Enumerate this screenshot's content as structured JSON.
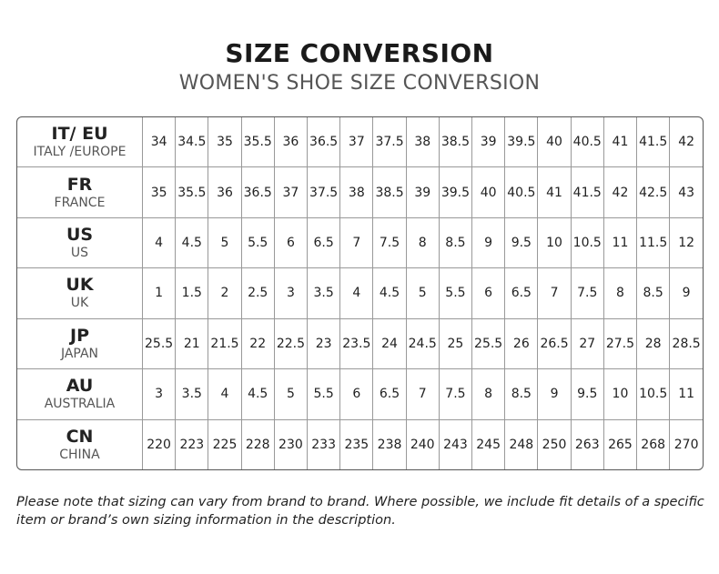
{
  "header": {
    "title": "SIZE CONVERSION",
    "subtitle": "WOMEN'S SHOE SIZE CONVERSION"
  },
  "table": {
    "rows": [
      {
        "code": "IT/ EU",
        "name": "ITALY /EUROPE",
        "values": [
          34,
          34.5,
          35,
          35.5,
          36,
          36.5,
          37,
          37.5,
          38,
          38.5,
          39,
          39.5,
          40,
          40.5,
          41,
          41.5,
          42
        ]
      },
      {
        "code": "FR",
        "name": "FRANCE",
        "values": [
          35,
          35.5,
          36,
          36.5,
          37,
          37.5,
          38,
          38.5,
          39,
          39.5,
          40,
          40.5,
          41,
          41.5,
          42,
          42.5,
          43
        ]
      },
      {
        "code": "US",
        "name": "US",
        "values": [
          4,
          4.5,
          5,
          5.5,
          6,
          6.5,
          7,
          7.5,
          8,
          8.5,
          9,
          9.5,
          10,
          10.5,
          11,
          11.5,
          12
        ]
      },
      {
        "code": "UK",
        "name": "UK",
        "values": [
          1,
          1.5,
          2,
          2.5,
          3,
          3.5,
          4,
          4.5,
          5,
          5.5,
          6,
          6.5,
          7,
          7.5,
          8,
          8.5,
          9
        ]
      },
      {
        "code": "JP",
        "name": "JAPAN",
        "values": [
          25.5,
          21,
          21.5,
          22,
          22.5,
          23,
          23.5,
          24,
          24.5,
          25,
          25.5,
          26,
          26.5,
          27,
          27.5,
          28,
          28.5
        ]
      },
      {
        "code": "AU",
        "name": "AUSTRALIA",
        "values": [
          3,
          3.5,
          4,
          4.5,
          5,
          5.5,
          6,
          6.5,
          7,
          7.5,
          8,
          8.5,
          9,
          9.5,
          10,
          10.5,
          11
        ]
      },
      {
        "code": "CN",
        "name": "CHINA",
        "values": [
          220,
          223,
          225,
          228,
          230,
          233,
          235,
          238,
          240,
          243,
          245,
          248,
          250,
          263,
          265,
          268,
          270
        ]
      }
    ]
  },
  "note": {
    "lines": [
      "Please note that sizing can vary from brand to brand. Where possible, we include fit details of a specific",
      "item or brand’s own sizing information in the description."
    ]
  }
}
